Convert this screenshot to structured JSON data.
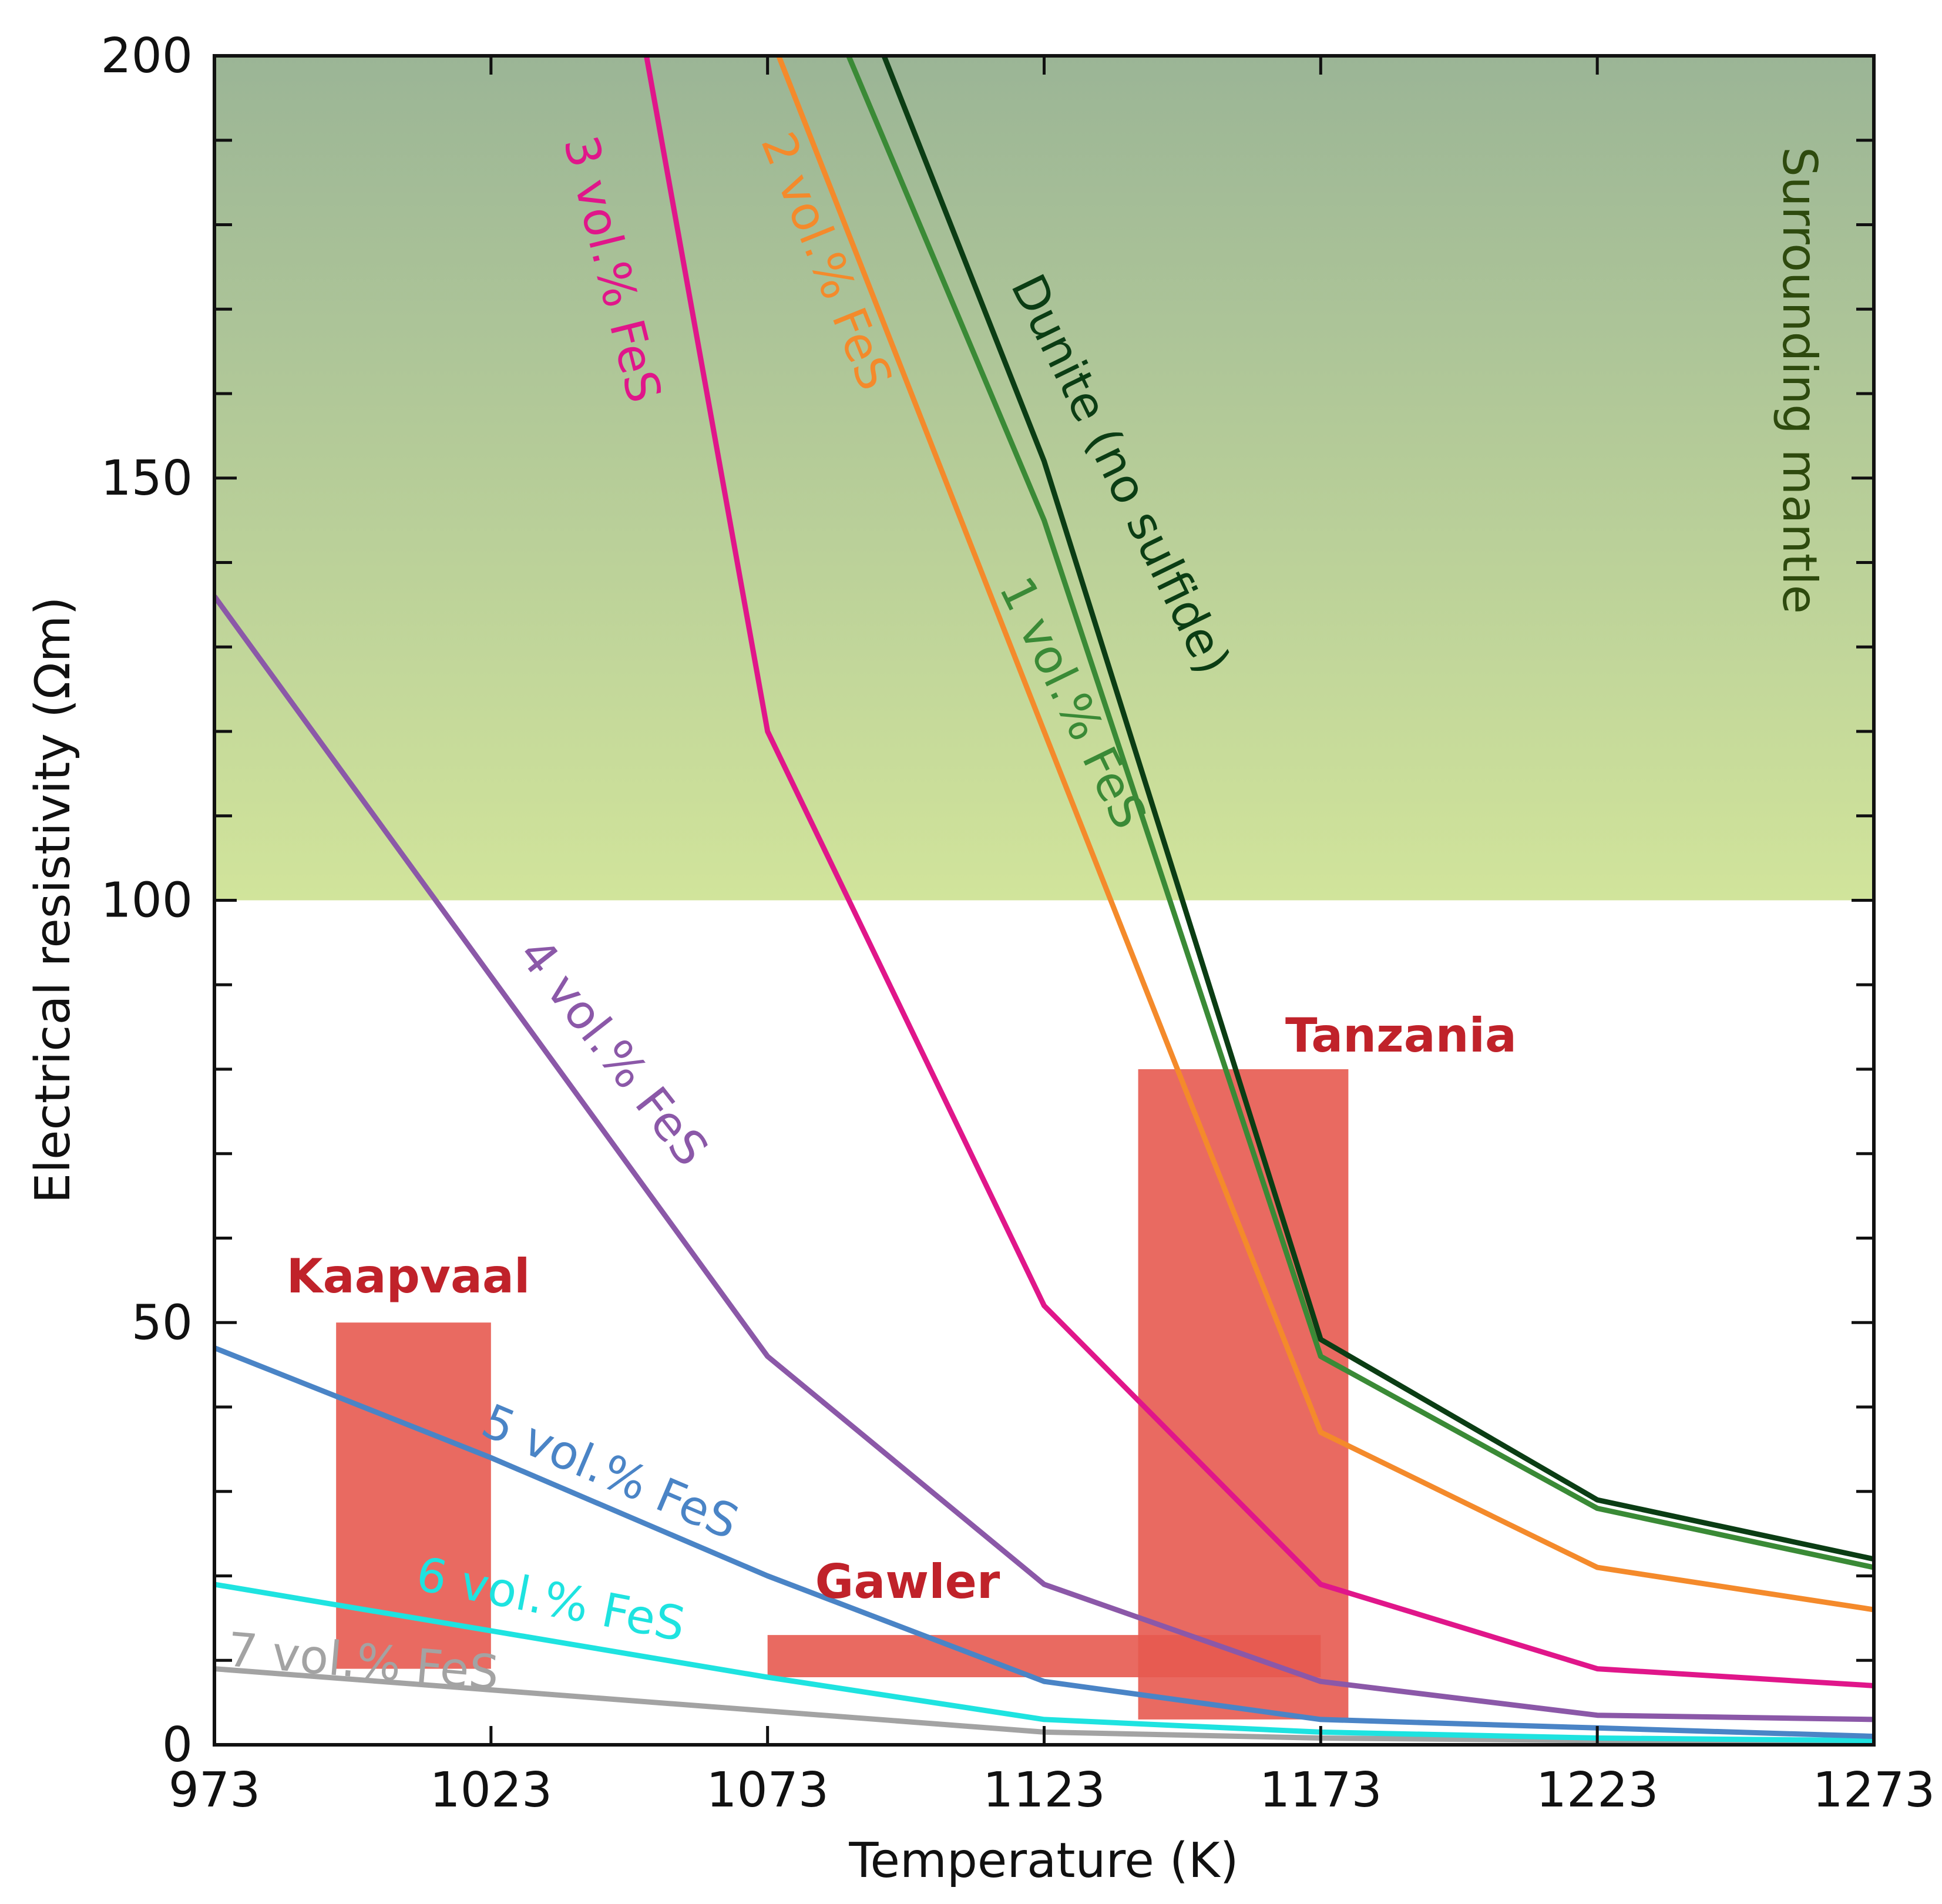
{
  "chart_data": {
    "type": "line",
    "title": "",
    "xlabel": "Temperature (K)",
    "ylabel": "Electrical resistivity (Ωm)",
    "xlim": [
      973,
      1273
    ],
    "ylim": [
      0,
      200
    ],
    "xticks": [
      973,
      1023,
      1073,
      1123,
      1173,
      1223,
      1273
    ],
    "yticks": [
      0,
      50,
      100,
      150,
      200
    ],
    "x_tick_labels": [
      "973",
      "1023",
      "1073",
      "1123",
      "1173",
      "1223",
      "1273"
    ],
    "y_tick_labels": [
      "0",
      "50",
      "100",
      "150",
      "200"
    ],
    "mantle_band": {
      "label": "Surrounding mantle",
      "y_range": [
        100,
        200
      ],
      "color_top": "#9bb596",
      "color_bottom": "#d1e49b",
      "label_color": "#2e4a0e"
    },
    "series": [
      {
        "name": "Dunite (no sulfide)",
        "label": "Dunite (no sulfide)",
        "color": "#0b3d14",
        "x": [
          1085,
          1123,
          1173,
          1223,
          1273
        ],
        "y": [
          215,
          152,
          48,
          29,
          22
        ]
      },
      {
        "name": "1 vol.% FeS",
        "label": "1 vol.% FeS",
        "color": "#3a8a36",
        "x": [
          1078,
          1123,
          1173,
          1223,
          1273
        ],
        "y": [
          215,
          145,
          46,
          28,
          21
        ]
      },
      {
        "name": "2 vol.% FeS",
        "label": "2 vol.% FeS",
        "color": "#f48a2b",
        "x": [
          1066,
          1123,
          1173,
          1223,
          1273
        ],
        "y": [
          215,
          120,
          37,
          21,
          16
        ]
      },
      {
        "name": "3 vol.% FeS",
        "label": "3 vol.% FeS",
        "color": "#e0168a",
        "x": [
          1047,
          1073,
          1123,
          1173,
          1223,
          1273
        ],
        "y": [
          215,
          120,
          52,
          19,
          9,
          7
        ]
      },
      {
        "name": "4 vol.% FeS",
        "label": "4 vol.% FeS",
        "color": "#8b58a8",
        "x": [
          973,
          1073,
          1123,
          1173,
          1223,
          1273
        ],
        "y": [
          136,
          46,
          19,
          7.5,
          3.5,
          3
        ]
      },
      {
        "name": "5 vol.% FeS",
        "label": "5 vol.% FeS",
        "color": "#4a84c6",
        "x": [
          973,
          1023,
          1073,
          1123,
          1173,
          1223,
          1273
        ],
        "y": [
          47,
          34,
          20,
          7.5,
          3,
          2,
          1
        ]
      },
      {
        "name": "6 vol.% FeS",
        "label": "6 vol.% FeS",
        "color": "#1ee3e0",
        "x": [
          973,
          1073,
          1123,
          1173,
          1223,
          1273
        ],
        "y": [
          19,
          8,
          3,
          1.5,
          0.8,
          0.5
        ]
      },
      {
        "name": "7 vol.% FeS",
        "label": "7 vol.% FeS",
        "color": "#a3a3a3",
        "x": [
          973,
          1073,
          1123,
          1173,
          1223,
          1273
        ],
        "y": [
          9,
          4,
          1.5,
          0.8,
          0.5,
          0.3
        ]
      }
    ],
    "regions": [
      {
        "name": "Kaapvaal",
        "label": "Kaapvaal",
        "x_range": [
          995,
          1023
        ],
        "y_range": [
          9,
          50
        ],
        "color": "#e75a50",
        "label_color": "#c0222a"
      },
      {
        "name": "Gawler",
        "label": "Gawler",
        "x_range": [
          1073,
          1173
        ],
        "y_range": [
          8,
          13
        ],
        "color": "#e75a50",
        "label_color": "#c0222a"
      },
      {
        "name": "Tanzania",
        "label": "Tanzania",
        "x_range": [
          1140,
          1178
        ],
        "y_range": [
          3,
          80
        ],
        "color": "#e75a50",
        "label_color": "#c0222a"
      }
    ]
  }
}
